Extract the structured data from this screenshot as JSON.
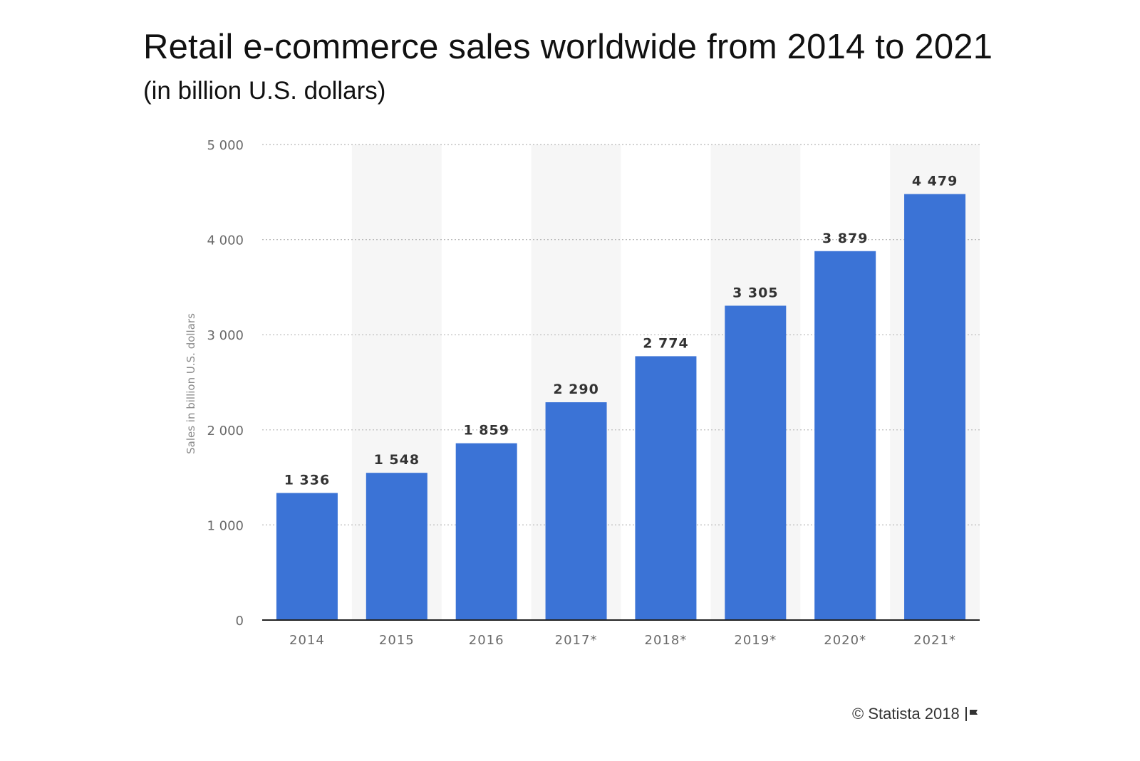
{
  "chart_data": {
    "type": "bar",
    "title": "Retail e-commerce sales worldwide from 2014 to 2021",
    "subtitle": "(in billion U.S. dollars)",
    "ylabel": "Sales in billion U.S. dollars",
    "xlabel": "",
    "categories": [
      "2014",
      "2015",
      "2016",
      "2017*",
      "2018*",
      "2019*",
      "2020*",
      "2021*"
    ],
    "values": [
      1336,
      1548,
      1859,
      2290,
      2774,
      3305,
      3879,
      4479
    ],
    "value_labels": [
      "1 336",
      "1 548",
      "1 859",
      "2 290",
      "2 774",
      "3 305",
      "3 879",
      "4 479"
    ],
    "y_ticks": [
      0,
      1000,
      2000,
      3000,
      4000,
      5000
    ],
    "y_tick_labels": [
      "0",
      "1 000",
      "2 000",
      "3 000",
      "4 000",
      "5 000"
    ],
    "ylim": [
      0,
      5000
    ],
    "grid": true,
    "alternating_column_shading": true,
    "legend": "none"
  },
  "colors": {
    "bar": "#3b73d6",
    "shade": "#f6f6f6",
    "grid": "#b8b8b8",
    "axis": "#222222",
    "tick_text": "#6a6a6a",
    "label_text": "#333333"
  },
  "footer": {
    "copyright": "© Statista 2018",
    "icon": "flag-icon"
  }
}
